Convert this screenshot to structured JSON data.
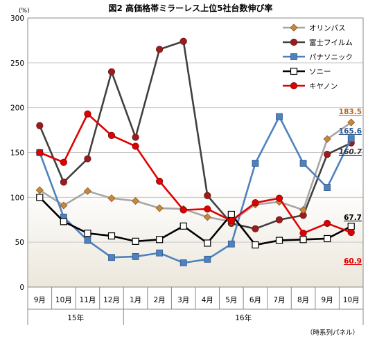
{
  "chart_data": {
    "type": "line",
    "title": "図2 高価格帯ミラーレス上位5社台数伸び率",
    "ylabel": "(%)",
    "note": "（時系列パネル）",
    "ylim": [
      0,
      300
    ],
    "yticks": [
      0,
      50,
      100,
      150,
      200,
      250,
      300
    ],
    "grid": true,
    "legend_position": "top-right",
    "categories": [
      "9月",
      "10月",
      "11月",
      "12月",
      "1月",
      "2月",
      "3月",
      "4月",
      "5月",
      "6月",
      "7月",
      "8月",
      "9月",
      "10月"
    ],
    "year_groups": [
      {
        "label": "15年",
        "start": 0,
        "end": 3
      },
      {
        "label": "16年",
        "start": 4,
        "end": 13
      }
    ],
    "series": [
      {
        "name": "オリンパス",
        "color": "#c8873a",
        "line_color": "#a6a6a6",
        "marker": "diamond",
        "values": [
          108,
          91,
          107,
          99,
          96,
          88,
          87,
          78,
          73,
          92,
          95,
          86,
          165,
          183.5
        ],
        "end_label": "183.5"
      },
      {
        "name": "富士フイルム",
        "color": "#9b1c1c",
        "line_color": "#404040",
        "marker": "circle",
        "values": [
          180,
          117,
          143,
          240,
          167,
          265,
          274,
          102,
          71,
          65,
          75,
          80,
          148,
          160.7
        ],
        "end_label": "160.7"
      },
      {
        "name": "パナソニック",
        "color": "#4f81bd",
        "line_color": "#4f81bd",
        "marker": "square",
        "values": [
          150,
          78,
          52,
          33,
          34,
          38,
          27,
          31,
          48,
          138,
          190,
          138,
          111,
          165.6
        ],
        "end_label": "165.6"
      },
      {
        "name": "ソニー",
        "color": "#ffffff",
        "line_color": "#000000",
        "marker": "open-square",
        "values": [
          100,
          73,
          60,
          57,
          51,
          53,
          68,
          49,
          81,
          47,
          52,
          53,
          54,
          67.7
        ],
        "end_label": "67.7"
      },
      {
        "name": "キヤノン",
        "color": "#e00000",
        "line_color": "#e00000",
        "marker": "circle",
        "values": [
          150,
          139,
          193,
          169,
          157,
          118,
          86,
          87,
          74,
          94,
          99,
          60,
          71,
          60.9
        ],
        "end_label": "60.9"
      }
    ]
  }
}
